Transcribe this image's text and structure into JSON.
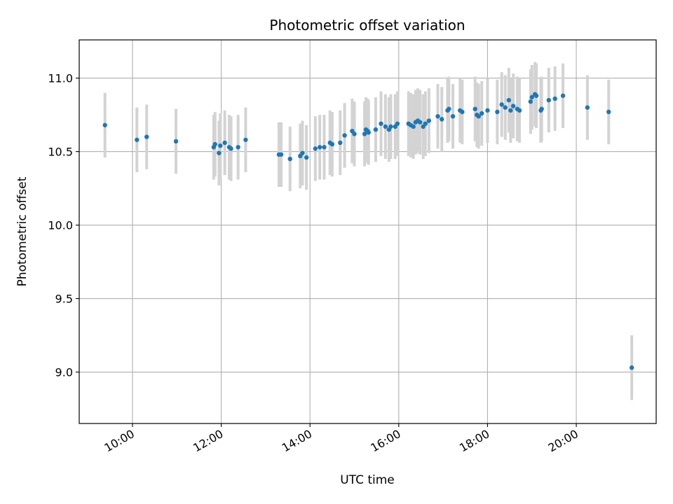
{
  "chart_data": {
    "type": "scatter",
    "title": "Photometric offset variation",
    "xlabel": "UTC time",
    "ylabel": "Photometric offset",
    "xlim_hours": [
      8.8,
      21.8
    ],
    "ylim": [
      8.65,
      11.26
    ],
    "x_ticks": [
      {
        "value": 10,
        "label": "10:00"
      },
      {
        "value": 12,
        "label": "12:00"
      },
      {
        "value": 14,
        "label": "14:00"
      },
      {
        "value": 16,
        "label": "16:00"
      },
      {
        "value": 18,
        "label": "18:00"
      },
      {
        "value": 20,
        "label": "20:00"
      }
    ],
    "y_ticks": [
      {
        "value": 9.0,
        "label": "9.0"
      },
      {
        "value": 9.5,
        "label": "9.5"
      },
      {
        "value": 10.0,
        "label": "10.0"
      },
      {
        "value": 10.5,
        "label": "10.5"
      },
      {
        "value": 11.0,
        "label": "11.0"
      }
    ],
    "grid": true,
    "colors": {
      "point": "#1f77b4",
      "errorbar": "#d3d3d3",
      "grid": "#b0b0b0"
    },
    "series": [
      {
        "name": "offset",
        "error": 0.22,
        "points": [
          [
            9.38,
            10.68
          ],
          [
            10.1,
            10.58
          ],
          [
            10.32,
            10.6
          ],
          [
            10.98,
            10.57
          ],
          [
            11.83,
            10.53
          ],
          [
            11.86,
            10.55
          ],
          [
            11.95,
            10.49
          ],
          [
            11.98,
            10.54
          ],
          [
            12.08,
            10.56
          ],
          [
            12.18,
            10.53
          ],
          [
            12.22,
            10.52
          ],
          [
            12.38,
            10.53
          ],
          [
            12.55,
            10.58
          ],
          [
            13.3,
            10.48
          ],
          [
            13.35,
            10.48
          ],
          [
            13.55,
            10.45
          ],
          [
            13.78,
            10.47
          ],
          [
            13.83,
            10.49
          ],
          [
            13.92,
            10.46
          ],
          [
            14.12,
            10.52
          ],
          [
            14.22,
            10.53
          ],
          [
            14.32,
            10.53
          ],
          [
            14.45,
            10.56
          ],
          [
            14.5,
            10.55
          ],
          [
            14.68,
            10.56
          ],
          [
            14.78,
            10.61
          ],
          [
            14.95,
            10.64
          ],
          [
            15.0,
            10.62
          ],
          [
            15.23,
            10.62
          ],
          [
            15.26,
            10.65
          ],
          [
            15.3,
            10.64
          ],
          [
            15.32,
            10.63
          ],
          [
            15.48,
            10.65
          ],
          [
            15.6,
            10.69
          ],
          [
            15.7,
            10.67
          ],
          [
            15.78,
            10.65
          ],
          [
            15.82,
            10.67
          ],
          [
            15.92,
            10.67
          ],
          [
            15.97,
            10.69
          ],
          [
            16.22,
            10.69
          ],
          [
            16.27,
            10.68
          ],
          [
            16.33,
            10.67
          ],
          [
            16.38,
            10.7
          ],
          [
            16.43,
            10.71
          ],
          [
            16.48,
            10.7
          ],
          [
            16.55,
            10.67
          ],
          [
            16.6,
            10.69
          ],
          [
            16.68,
            10.71
          ],
          [
            16.88,
            10.74
          ],
          [
            16.97,
            10.72
          ],
          [
            17.1,
            10.78
          ],
          [
            17.13,
            10.79
          ],
          [
            17.22,
            10.74
          ],
          [
            17.38,
            10.78
          ],
          [
            17.43,
            10.77
          ],
          [
            17.72,
            10.79
          ],
          [
            17.76,
            10.75
          ],
          [
            17.8,
            10.74
          ],
          [
            17.87,
            10.76
          ],
          [
            18.0,
            10.78
          ],
          [
            18.22,
            10.77
          ],
          [
            18.32,
            10.82
          ],
          [
            18.4,
            10.8
          ],
          [
            18.48,
            10.85
          ],
          [
            18.52,
            10.78
          ],
          [
            18.58,
            10.81
          ],
          [
            18.67,
            10.79
          ],
          [
            18.72,
            10.78
          ],
          [
            18.97,
            10.84
          ],
          [
            19.0,
            10.87
          ],
          [
            19.07,
            10.89
          ],
          [
            19.1,
            10.88
          ],
          [
            19.2,
            10.78
          ],
          [
            19.22,
            10.79
          ],
          [
            19.38,
            10.85
          ],
          [
            19.52,
            10.86
          ],
          [
            19.7,
            10.88
          ],
          [
            20.25,
            10.8
          ],
          [
            20.73,
            10.77
          ],
          [
            21.25,
            9.03
          ]
        ]
      }
    ]
  }
}
